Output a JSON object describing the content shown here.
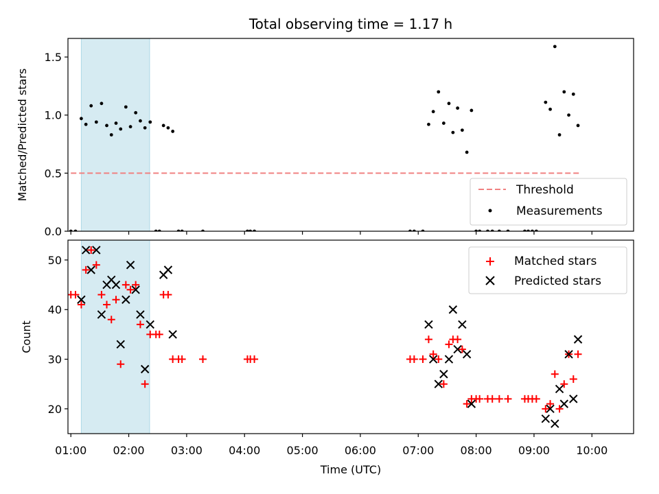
{
  "chart_data": {
    "title": "Total observing time = 1.17 h",
    "xlabel": "Time (UTC)",
    "xlim": [
      -0.05,
      9.72
    ],
    "x_tick_values": [
      0,
      1,
      2,
      3,
      4,
      5,
      6,
      7,
      8,
      9
    ],
    "x_tick_labels": [
      "01:00",
      "02:00",
      "03:00",
      "04:00",
      "05:00",
      "06:00",
      "07:00",
      "08:00",
      "09:00",
      "10:00"
    ],
    "x_units": "hours after 01:00 UTC",
    "highlight": {
      "x_range": [
        0.18,
        1.36
      ],
      "color": "#add8e6",
      "alpha": 0.5
    },
    "panels": [
      {
        "type": "scatter",
        "ylabel": "Matched/Predicted stars",
        "ylim": [
          0,
          1.66
        ],
        "y_ticks": [
          "0.0",
          "0.5",
          "1.0",
          "1.5"
        ],
        "y_tick_values": [
          0,
          0.5,
          1.0,
          1.5
        ],
        "legend_position": "lower-right",
        "series": [
          {
            "name": "Threshold",
            "kind": "line",
            "style": "dashed",
            "color": "#f08080",
            "points": [
              [
                0.0,
                0.5
              ],
              [
                8.8,
                0.5
              ]
            ]
          },
          {
            "name": "Measurements",
            "kind": "dot",
            "color": "#000000",
            "points": [
              [
                0.0,
                0.0
              ],
              [
                0.08,
                0.0
              ],
              [
                0.18,
                0.97
              ],
              [
                0.26,
                0.92
              ],
              [
                0.35,
                1.08
              ],
              [
                0.44,
                0.94
              ],
              [
                0.53,
                1.1
              ],
              [
                0.62,
                0.91
              ],
              [
                0.7,
                0.83
              ],
              [
                0.78,
                0.93
              ],
              [
                0.86,
                0.88
              ],
              [
                0.95,
                1.07
              ],
              [
                1.03,
                0.9
              ],
              [
                1.12,
                1.02
              ],
              [
                1.2,
                0.95
              ],
              [
                1.28,
                0.89
              ],
              [
                1.37,
                0.94
              ],
              [
                1.47,
                0.0
              ],
              [
                1.53,
                0.0
              ],
              [
                1.6,
                0.91
              ],
              [
                1.68,
                0.89
              ],
              [
                1.76,
                0.86
              ],
              [
                1.86,
                0.0
              ],
              [
                1.92,
                0.0
              ],
              [
                2.28,
                0.0
              ],
              [
                3.05,
                0.0
              ],
              [
                3.1,
                0.0
              ],
              [
                3.17,
                0.0
              ],
              [
                5.86,
                0.0
              ],
              [
                5.93,
                0.0
              ],
              [
                6.08,
                0.0
              ],
              [
                6.18,
                0.92
              ],
              [
                6.26,
                1.03
              ],
              [
                6.35,
                1.2
              ],
              [
                6.44,
                0.93
              ],
              [
                6.53,
                1.1
              ],
              [
                6.6,
                0.85
              ],
              [
                6.68,
                1.06
              ],
              [
                6.76,
                0.87
              ],
              [
                6.84,
                0.68
              ],
              [
                6.92,
                1.04
              ],
              [
                7.0,
                0.0
              ],
              [
                7.06,
                0.0
              ],
              [
                7.2,
                0.0
              ],
              [
                7.28,
                0.0
              ],
              [
                7.4,
                0.0
              ],
              [
                7.55,
                0.0
              ],
              [
                7.84,
                0.0
              ],
              [
                7.9,
                0.0
              ],
              [
                7.97,
                0.0
              ],
              [
                8.04,
                0.0
              ],
              [
                8.2,
                1.11
              ],
              [
                8.28,
                1.05
              ],
              [
                8.36,
                1.59
              ],
              [
                8.44,
                0.83
              ],
              [
                8.52,
                1.2
              ],
              [
                8.6,
                1.0
              ],
              [
                8.68,
                1.18
              ],
              [
                8.76,
                0.91
              ]
            ]
          }
        ]
      },
      {
        "type": "scatter",
        "ylabel": "Count",
        "ylim": [
          15.0,
          54.0
        ],
        "y_ticks": [
          "20",
          "30",
          "40",
          "50"
        ],
        "y_tick_values": [
          20,
          30,
          40,
          50
        ],
        "legend_position": "top-right",
        "series": [
          {
            "name": "Matched stars",
            "kind": "plus",
            "color": "#ff0000",
            "points": [
              [
                0.0,
                43
              ],
              [
                0.08,
                43
              ],
              [
                0.18,
                41
              ],
              [
                0.26,
                48
              ],
              [
                0.35,
                52
              ],
              [
                0.44,
                49
              ],
              [
                0.53,
                43
              ],
              [
                0.62,
                41
              ],
              [
                0.7,
                38
              ],
              [
                0.78,
                42
              ],
              [
                0.86,
                29
              ],
              [
                0.95,
                45
              ],
              [
                1.03,
                44
              ],
              [
                1.12,
                45
              ],
              [
                1.2,
                37
              ],
              [
                1.28,
                25
              ],
              [
                1.37,
                35
              ],
              [
                1.47,
                35
              ],
              [
                1.53,
                35
              ],
              [
                1.6,
                43
              ],
              [
                1.68,
                43
              ],
              [
                1.76,
                30
              ],
              [
                1.86,
                30
              ],
              [
                1.92,
                30
              ],
              [
                2.28,
                30
              ],
              [
                3.05,
                30
              ],
              [
                3.1,
                30
              ],
              [
                3.17,
                30
              ],
              [
                5.86,
                30
              ],
              [
                5.93,
                30
              ],
              [
                6.08,
                30
              ],
              [
                6.18,
                34
              ],
              [
                6.26,
                31
              ],
              [
                6.35,
                30
              ],
              [
                6.44,
                25
              ],
              [
                6.53,
                33
              ],
              [
                6.6,
                34
              ],
              [
                6.68,
                34
              ],
              [
                6.76,
                32
              ],
              [
                6.84,
                21
              ],
              [
                6.92,
                22
              ],
              [
                7.0,
                22
              ],
              [
                7.06,
                22
              ],
              [
                7.2,
                22
              ],
              [
                7.28,
                22
              ],
              [
                7.4,
                22
              ],
              [
                7.55,
                22
              ],
              [
                7.84,
                22
              ],
              [
                7.9,
                22
              ],
              [
                7.97,
                22
              ],
              [
                8.04,
                22
              ],
              [
                8.2,
                20
              ],
              [
                8.28,
                21
              ],
              [
                8.36,
                27
              ],
              [
                8.44,
                20
              ],
              [
                8.52,
                25
              ],
              [
                8.6,
                31
              ],
              [
                8.68,
                26
              ],
              [
                8.76,
                31
              ]
            ]
          },
          {
            "name": "Predicted stars",
            "kind": "x",
            "color": "#000000",
            "points": [
              [
                0.18,
                42
              ],
              [
                0.26,
                52
              ],
              [
                0.35,
                48
              ],
              [
                0.44,
                52
              ],
              [
                0.53,
                39
              ],
              [
                0.62,
                45
              ],
              [
                0.7,
                46
              ],
              [
                0.78,
                45
              ],
              [
                0.86,
                33
              ],
              [
                0.95,
                42
              ],
              [
                1.03,
                49
              ],
              [
                1.12,
                44
              ],
              [
                1.2,
                39
              ],
              [
                1.28,
                28
              ],
              [
                1.37,
                37
              ],
              [
                1.6,
                47
              ],
              [
                1.68,
                48
              ],
              [
                1.76,
                35
              ],
              [
                6.18,
                37
              ],
              [
                6.26,
                30
              ],
              [
                6.35,
                25
              ],
              [
                6.44,
                27
              ],
              [
                6.53,
                30
              ],
              [
                6.6,
                40
              ],
              [
                6.68,
                32
              ],
              [
                6.76,
                37
              ],
              [
                6.84,
                31
              ],
              [
                6.92,
                21
              ],
              [
                8.2,
                18
              ],
              [
                8.28,
                20
              ],
              [
                8.36,
                17
              ],
              [
                8.44,
                24
              ],
              [
                8.52,
                21
              ],
              [
                8.6,
                31
              ],
              [
                8.68,
                22
              ],
              [
                8.76,
                34
              ]
            ]
          }
        ]
      }
    ]
  }
}
